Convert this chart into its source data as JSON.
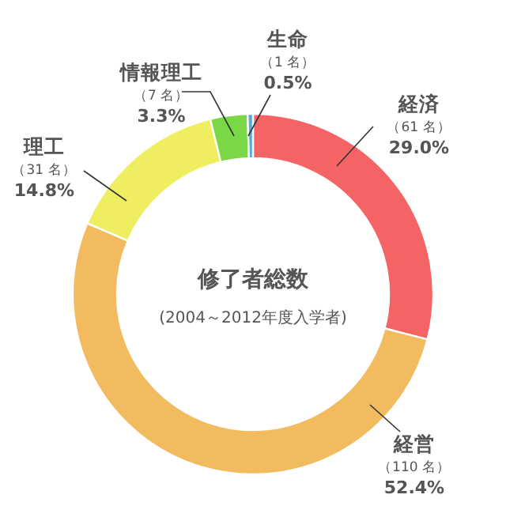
{
  "chart_data": {
    "type": "donut",
    "title": "修了者総数",
    "subtitle": "(2004～2012年度入学者)",
    "categories": [
      "経済",
      "経営",
      "理工",
      "情報理工",
      "生命"
    ],
    "values": [
      61,
      110,
      31,
      7,
      1
    ],
    "value_labels": [
      "（61 名）",
      "（110 名）",
      "（31 名）",
      "（7 名）",
      "（1 名）"
    ],
    "colors": [
      "#f46464",
      "#f2bb60",
      "#eeee60",
      "#7ad846",
      "#5aa9d6"
    ],
    "annotations": [
      {
        "text": "29.0%",
        "x": "経済"
      },
      {
        "text": "52.4%",
        "x": "経営"
      },
      {
        "text": "14.8%",
        "x": "理工"
      },
      {
        "text": "3.3%",
        "x": "情報理工"
      },
      {
        "text": "0.5%",
        "x": "生命"
      }
    ]
  }
}
